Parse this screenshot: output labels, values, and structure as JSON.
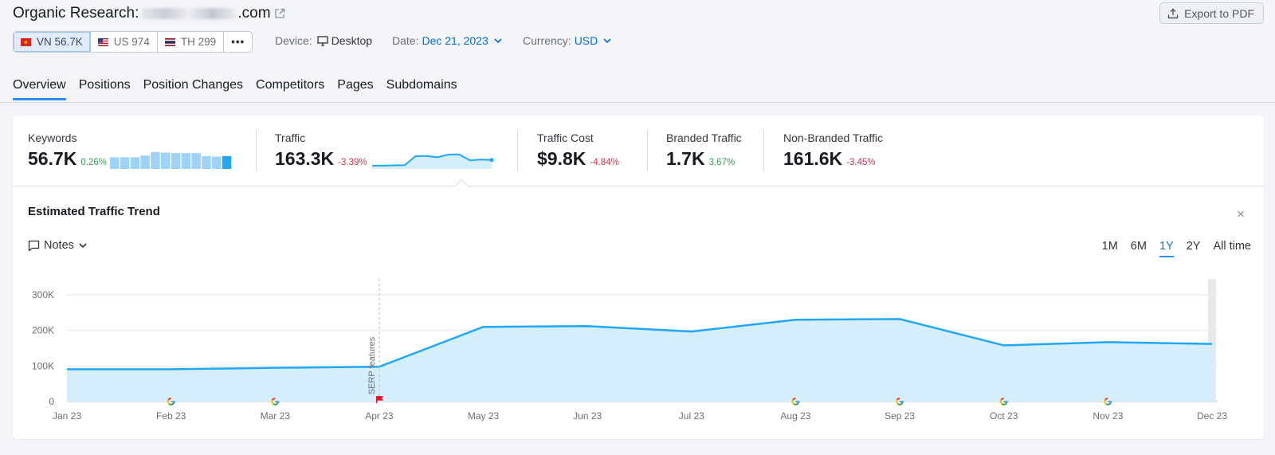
{
  "header": {
    "title_prefix": "Organic Research: ",
    "title_domain_suffix": ".com",
    "export_label": "Export to PDF"
  },
  "databases": [
    {
      "label": "VN 56.7K",
      "active": true
    },
    {
      "label": "US 974",
      "active": false
    },
    {
      "label": "TH 299",
      "active": false
    }
  ],
  "more_label": "•••",
  "filters": {
    "device_label": "Device:",
    "device_value": "Desktop",
    "date_label": "Date:",
    "date_value": "Dec 21, 2023",
    "currency_label": "Currency:",
    "currency_value": "USD"
  },
  "tabs": [
    "Overview",
    "Positions",
    "Position Changes",
    "Competitors",
    "Pages",
    "Subdomains"
  ],
  "metrics": {
    "keywords": {
      "label": "Keywords",
      "value": "56.7K",
      "change": "0.26%"
    },
    "traffic": {
      "label": "Traffic",
      "value": "163.3K",
      "change": "-3.39%"
    },
    "traffic_cost": {
      "label": "Traffic Cost",
      "value": "$9.8K",
      "change": "-4.84%"
    },
    "branded": {
      "label": "Branded Traffic",
      "value": "1.7K",
      "change": "3.67%"
    },
    "non_branded": {
      "label": "Non-Branded Traffic",
      "value": "161.6K",
      "change": "-3.45%"
    }
  },
  "trend": {
    "title": "Estimated Traffic Trend",
    "notes_label": "Notes",
    "close_label": "×",
    "ranges": [
      "1M",
      "6M",
      "1Y",
      "2Y",
      "All time"
    ],
    "active_range": "1Y",
    "serp_annotation": "SERP features"
  },
  "colors": {
    "accent": "#2e8ee8",
    "line": "#20a7f5",
    "area": "#d5eefb",
    "positive": "#3d9a5c",
    "negative": "#d1344b"
  },
  "chart_data": {
    "type": "area",
    "categories": [
      "Jan 23",
      "Feb 23",
      "Mar 23",
      "Apr 23",
      "May 23",
      "Jun 23",
      "Jul 23",
      "Aug 23",
      "Sep 23",
      "Oct 23",
      "Nov 23",
      "Dec 23"
    ],
    "values": [
      91000,
      91000,
      95000,
      98000,
      210000,
      212000,
      197000,
      230000,
      232000,
      158000,
      167000,
      162000
    ],
    "yticks": [
      "0",
      "100K",
      "200K",
      "300K"
    ],
    "ylim": [
      0,
      300000
    ],
    "grid": true,
    "google_update_markers": [
      "Feb 23",
      "Mar 23",
      "Aug 23",
      "Sep 23",
      "Oct 23",
      "Nov 23"
    ],
    "note_markers": [
      "Apr 23"
    ],
    "keywords_sparkline": [
      4,
      4,
      4,
      4.6,
      5.8,
      5.6,
      5.4,
      5.4,
      5.4,
      4.4,
      4.2,
      4.4
    ],
    "traffic_sparkline": [
      91,
      91,
      95,
      98,
      210,
      212,
      197,
      230,
      232,
      158,
      167,
      162
    ]
  }
}
